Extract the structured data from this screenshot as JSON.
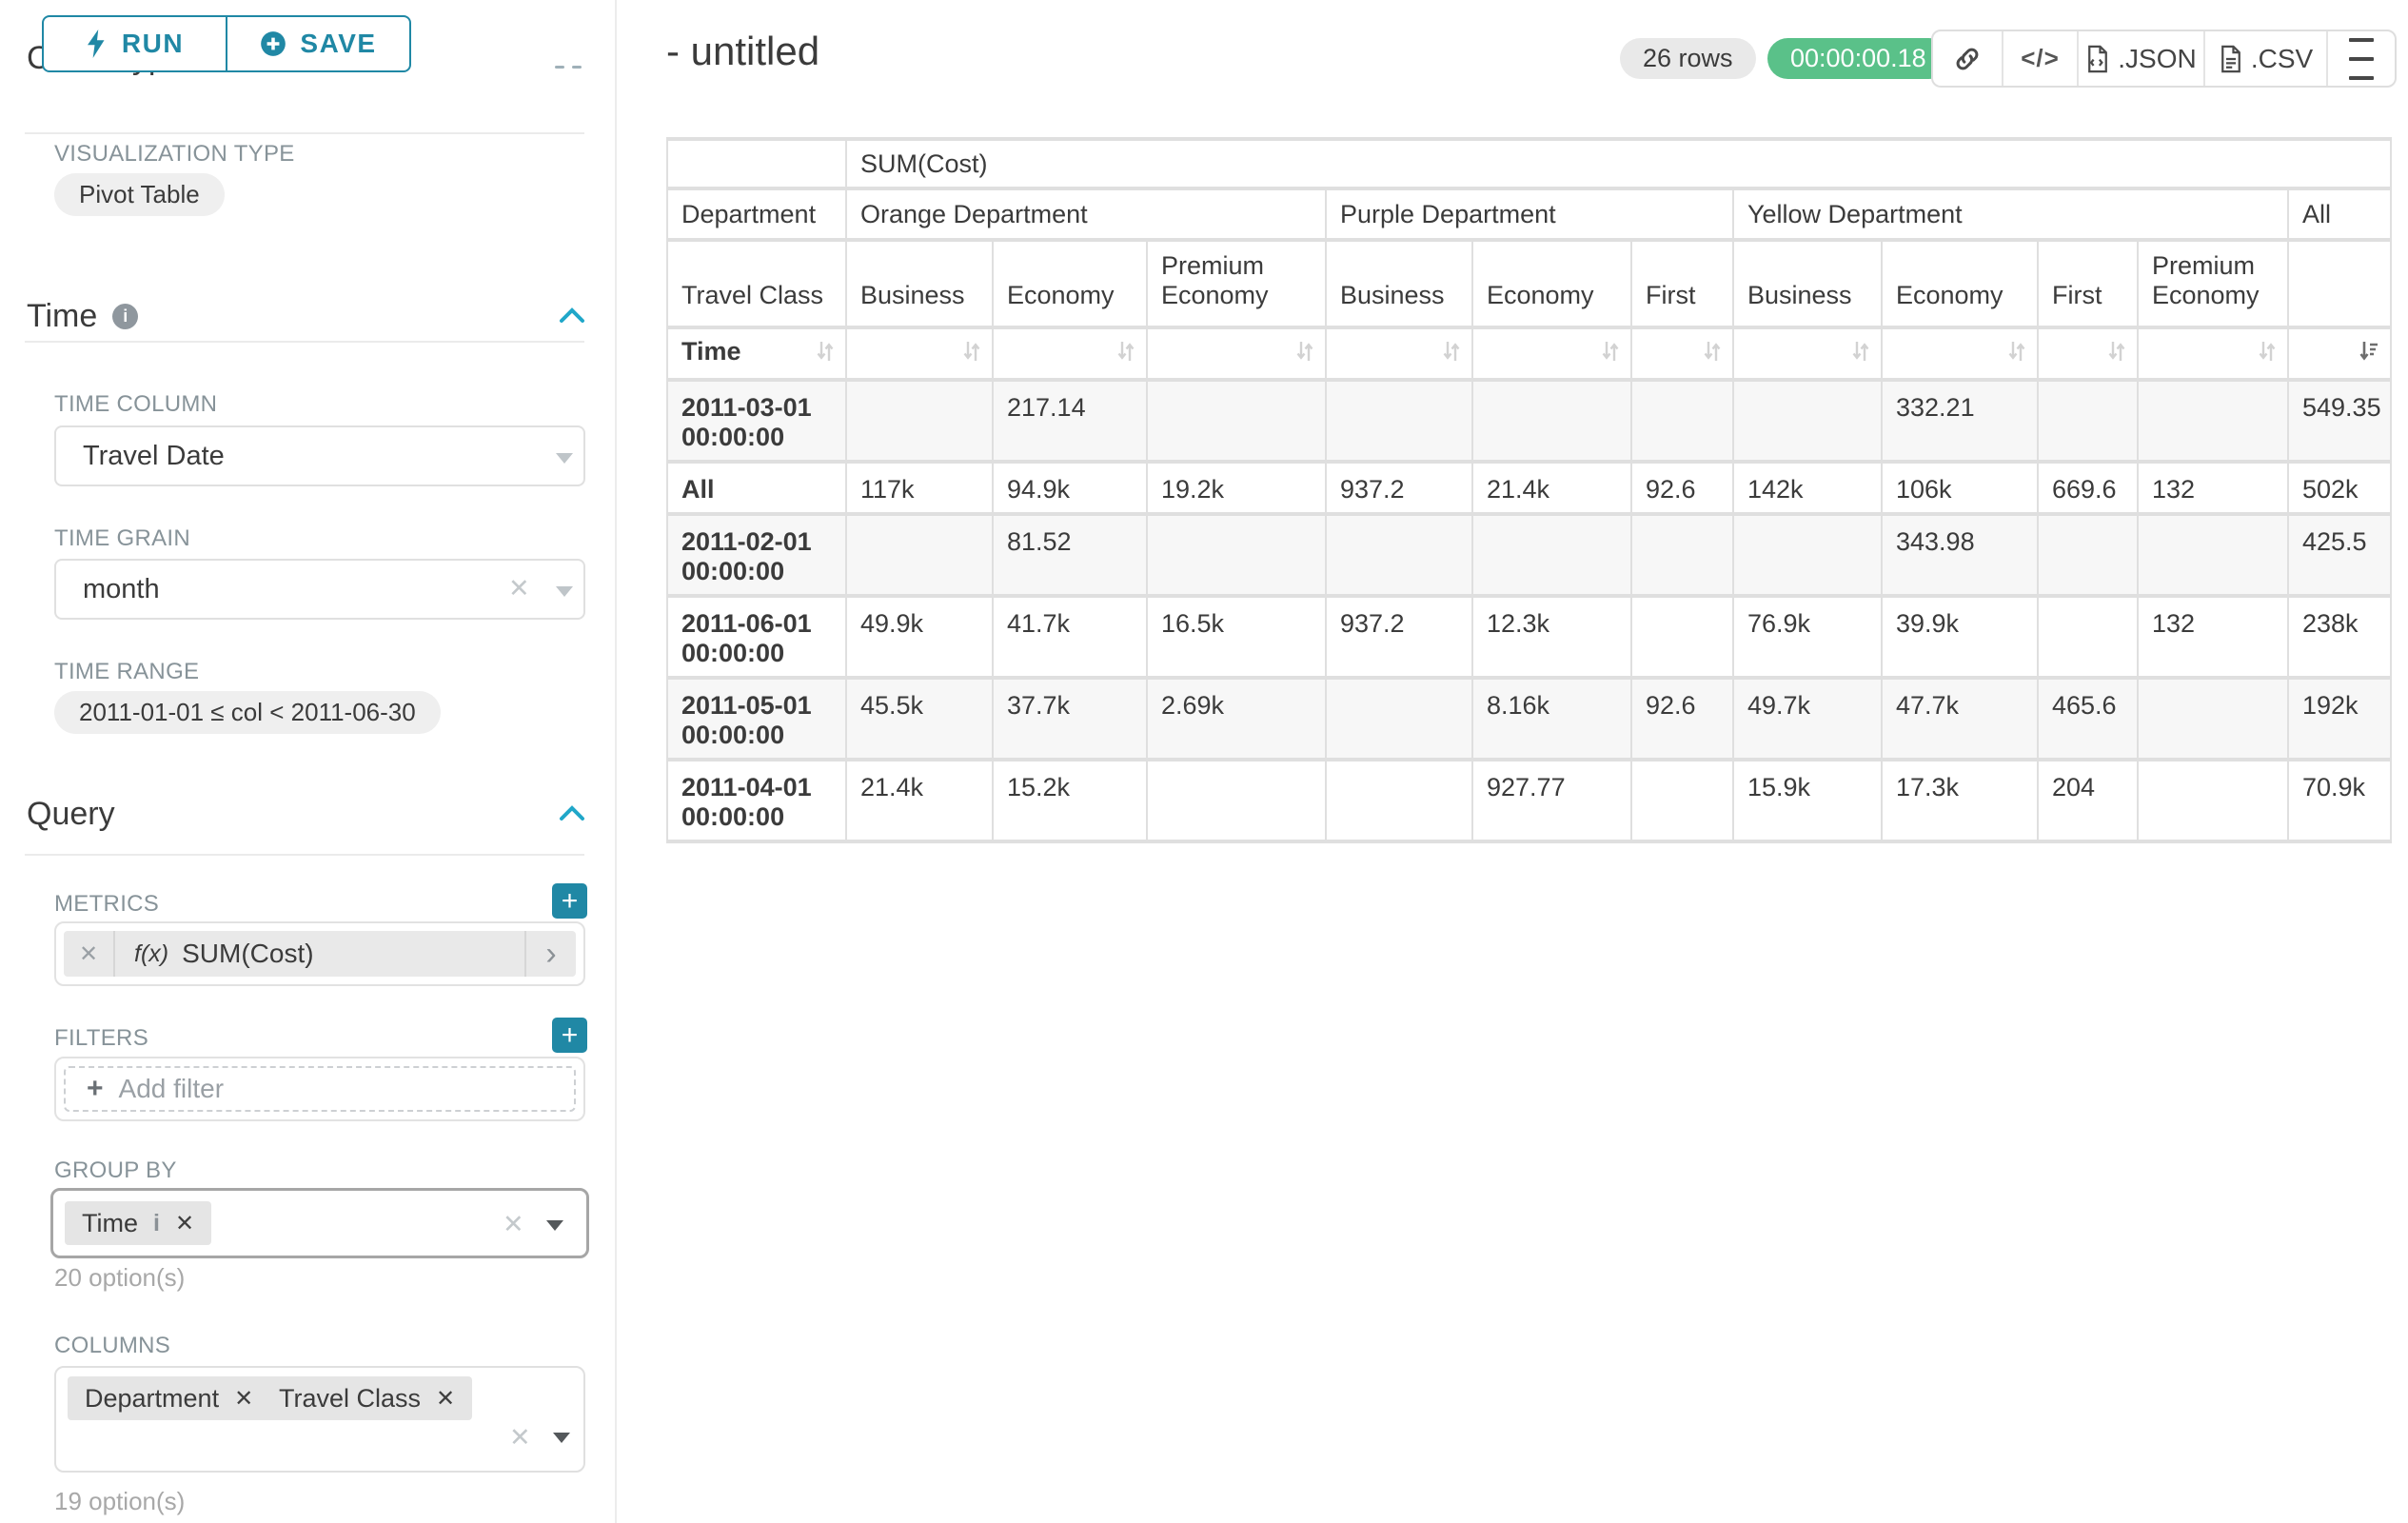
{
  "colors": {
    "accent_teal": "#2088a5",
    "bright_teal": "#20a7c9",
    "success_green": "#5ac189",
    "label_gray": "#879399",
    "text_dark": "#3b3b3b",
    "border_gray": "#e0e0e0"
  },
  "sidebar": {
    "run_button": "RUN",
    "save_button": "SAVE",
    "chart_type_heading": "Chart Type",
    "visualization": {
      "label": "VISUALIZATION TYPE",
      "value": "Pivot Table"
    },
    "time": {
      "heading": "Time",
      "time_column": {
        "label": "TIME COLUMN",
        "value": "Travel Date"
      },
      "time_grain": {
        "label": "TIME GRAIN",
        "value": "month"
      },
      "time_range": {
        "label": "TIME RANGE",
        "value": "2011-01-01 ≤ col < 2011-06-30"
      }
    },
    "query": {
      "heading": "Query",
      "metrics": {
        "label": "METRICS",
        "fx": "f(x)",
        "value": "SUM(Cost)"
      },
      "filters": {
        "label": "FILTERS",
        "placeholder": "Add filter"
      },
      "group_by": {
        "label": "GROUP BY",
        "chip": "Time",
        "options_hint": "20 option(s)"
      },
      "columns": {
        "label": "COLUMNS",
        "chips": [
          "Department",
          "Travel Class"
        ],
        "options_hint": "19 option(s)"
      }
    }
  },
  "header": {
    "title": "- untitled",
    "row_count_badge": "26 rows",
    "timer_badge": "00:00:00.18",
    "export_json": ".JSON",
    "export_csv": ".CSV"
  },
  "pivot": {
    "metric_header": "SUM(Cost)",
    "department_label": "Department",
    "travel_class_label": "Travel Class",
    "time_label": "Time",
    "groups": [
      {
        "name": "Orange Department",
        "classes": [
          "Business",
          "Economy",
          "Premium Economy"
        ]
      },
      {
        "name": "Purple Department",
        "classes": [
          "Business",
          "Economy",
          "First"
        ]
      },
      {
        "name": "Yellow Department",
        "classes": [
          "Business",
          "Economy",
          "First",
          "Premium Economy"
        ]
      },
      {
        "name": "All",
        "classes": [
          ""
        ]
      }
    ],
    "rows": [
      {
        "label": "2011-03-01 00:00:00",
        "values": [
          "",
          "217.14",
          "",
          "",
          "",
          "",
          "",
          "332.21",
          "",
          "",
          "549.35"
        ]
      },
      {
        "label": "All",
        "values": [
          "117k",
          "94.9k",
          "19.2k",
          "937.2",
          "21.4k",
          "92.6",
          "142k",
          "106k",
          "669.6",
          "132",
          "502k"
        ]
      },
      {
        "label": "2011-02-01 00:00:00",
        "values": [
          "",
          "81.52",
          "",
          "",
          "",
          "",
          "",
          "343.98",
          "",
          "",
          "425.5"
        ]
      },
      {
        "label": "2011-06-01 00:00:00",
        "values": [
          "49.9k",
          "41.7k",
          "16.5k",
          "937.2",
          "12.3k",
          "",
          "76.9k",
          "39.9k",
          "",
          "132",
          "238k"
        ]
      },
      {
        "label": "2011-05-01 00:00:00",
        "values": [
          "45.5k",
          "37.7k",
          "2.69k",
          "",
          "8.16k",
          "92.6",
          "49.7k",
          "47.7k",
          "465.6",
          "",
          "192k"
        ]
      },
      {
        "label": "2011-04-01 00:00:00",
        "values": [
          "21.4k",
          "15.2k",
          "",
          "",
          "927.77",
          "",
          "15.9k",
          "17.3k",
          "204",
          "",
          "70.9k"
        ]
      }
    ]
  }
}
